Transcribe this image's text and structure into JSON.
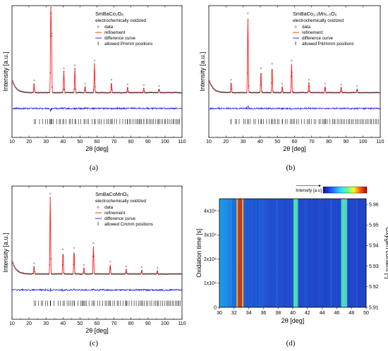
{
  "chart_data": [
    {
      "type": "line",
      "panel": "(a)",
      "title": "SmBaCo₂O₆",
      "subtitle": "electrochemically oxidized",
      "xlabel": "2θ [deg]",
      "ylabel": "Intensity [a.u.]",
      "xlim": [
        10,
        110
      ],
      "xticks": [
        "10",
        "20",
        "30",
        "40",
        "50",
        "60",
        "70",
        "80",
        "90",
        "100",
        "110"
      ],
      "legend": [
        "data",
        "refinement",
        "difference curve",
        "allowed Pmmm positions"
      ],
      "peaks": [
        {
          "x": 23.0,
          "h": 0.12
        },
        {
          "x": 32.8,
          "h": 1.0
        },
        {
          "x": 33.2,
          "h": 0.7
        },
        {
          "x": 40.5,
          "h": 0.28
        },
        {
          "x": 47.0,
          "h": 0.32
        },
        {
          "x": 53.0,
          "h": 0.08
        },
        {
          "x": 58.5,
          "h": 0.38
        },
        {
          "x": 68.5,
          "h": 0.13
        },
        {
          "x": 78.0,
          "h": 0.07
        },
        {
          "x": 87.5,
          "h": 0.06
        },
        {
          "x": 96.5,
          "h": 0.05
        }
      ]
    },
    {
      "type": "line",
      "panel": "(b)",
      "title": "SmBaCo₁.₅Mn₀.₅O₆",
      "subtitle": "electrochemically oxidized",
      "xlabel": "2θ [deg]",
      "ylabel": "Intensity [a.u.]",
      "xlim": [
        10,
        110
      ],
      "xticks": [
        "10",
        "20",
        "30",
        "40",
        "50",
        "60",
        "70",
        "80",
        "90",
        "100",
        "110"
      ],
      "legend": [
        "data",
        "refinement",
        "difference curve",
        "allowed P4/mmm positions"
      ],
      "peaks": [
        {
          "x": 23.0,
          "h": 0.13
        },
        {
          "x": 32.8,
          "h": 1.0
        },
        {
          "x": 40.4,
          "h": 0.28
        },
        {
          "x": 46.9,
          "h": 0.34
        },
        {
          "x": 52.8,
          "h": 0.08
        },
        {
          "x": 58.3,
          "h": 0.38
        },
        {
          "x": 68.4,
          "h": 0.13
        },
        {
          "x": 77.8,
          "h": 0.08
        },
        {
          "x": 87.2,
          "h": 0.07
        },
        {
          "x": 96.5,
          "h": 0.05
        }
      ]
    },
    {
      "type": "line",
      "panel": "(c)",
      "title": "SmBaCoMnO₆",
      "subtitle": "electrochemically oxidized",
      "xlabel": "2θ [deg]",
      "ylabel": "Intensity [a.u.]",
      "xlim": [
        10,
        110
      ],
      "xticks": [
        "10",
        "20",
        "30",
        "40",
        "50",
        "60",
        "70",
        "80",
        "90",
        "100",
        "110"
      ],
      "legend": [
        "data",
        "refinement",
        "difference curve",
        "allowed Cmmm positions"
      ],
      "peaks": [
        {
          "x": 23.0,
          "h": 0.1
        },
        {
          "x": 32.5,
          "h": 1.0
        },
        {
          "x": 40.0,
          "h": 0.28
        },
        {
          "x": 46.5,
          "h": 0.3
        },
        {
          "x": 52.3,
          "h": 0.08
        },
        {
          "x": 57.9,
          "h": 0.36
        },
        {
          "x": 67.8,
          "h": 0.12
        },
        {
          "x": 77.2,
          "h": 0.06
        },
        {
          "x": 86.3,
          "h": 0.05
        },
        {
          "x": 95.5,
          "h": 0.04
        }
      ]
    },
    {
      "type": "heatmap",
      "panel": "(d)",
      "xlabel": "2θ [deg]",
      "ylabel": "Oxidation time [s]",
      "y2label": "Oxygen content [-]",
      "colorbar_label": "Intensity [a.u]",
      "xlim": [
        30,
        50
      ],
      "xticks": [
        "30",
        "32",
        "34",
        "36",
        "38",
        "40",
        "42",
        "44",
        "46",
        "48",
        "50"
      ],
      "ylim": [
        0,
        45000
      ],
      "yticks": [
        {
          "v": 0,
          "label": "0"
        },
        {
          "v": 10000,
          "label": "1x10⁴"
        },
        {
          "v": 20000,
          "label": "2x10⁴"
        },
        {
          "v": 30000,
          "label": "3x10⁴"
        },
        {
          "v": 40000,
          "label": "4x10⁴"
        }
      ],
      "y2lim": [
        5.91,
        5.96
      ],
      "y2ticks": [
        "5.91",
        "5.92",
        "5.93",
        "5.94",
        "5.95",
        "5.96"
      ],
      "stripes": [
        {
          "x": 32.8,
          "w": 0.55,
          "color": "#c0392b"
        },
        {
          "x": 40.4,
          "w": 0.45,
          "color": "#4fe0a0"
        },
        {
          "x": 47.0,
          "w": 0.65,
          "color": "#53d9b5"
        }
      ]
    }
  ],
  "captions": [
    "(a)",
    "(b)",
    "(c)",
    "(d)"
  ]
}
